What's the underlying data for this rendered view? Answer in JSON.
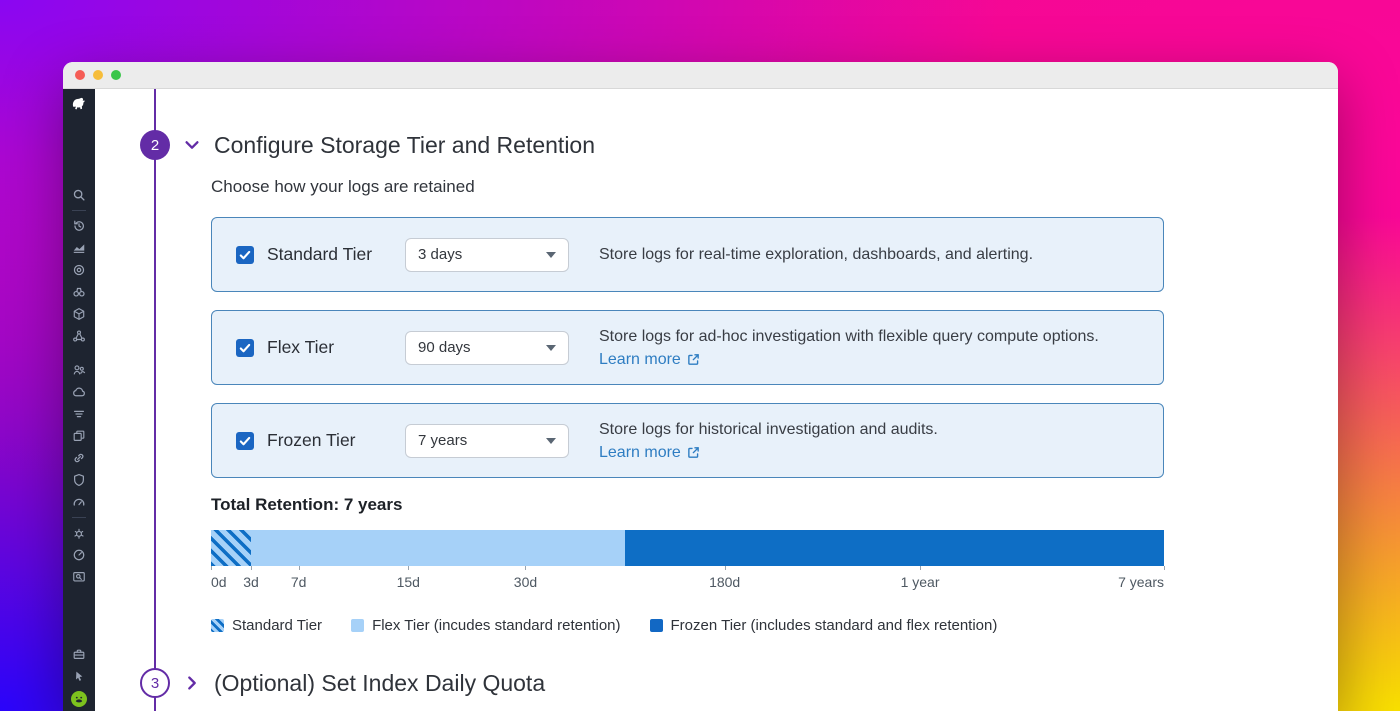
{
  "window": {
    "titlebar_buttons": [
      "close",
      "minimize",
      "maximize"
    ]
  },
  "sidebar": {
    "logo": "datadog-logo",
    "icons": [
      "search-icon",
      "history-icon",
      "dashboards-icon",
      "metrics-target-icon",
      "watchdog-binoculars-icon",
      "package-cube-icon",
      "service-map-icon",
      "org-people-icon",
      "cloud-icon",
      "logs-filter-icon",
      "apps-windows-icon",
      "pipelines-link-icon",
      "security-shield-icon",
      "gauge-icon",
      "settings-bug-icon",
      "performance-speed-icon",
      "monitor-search-icon",
      "toolbox-icon",
      "pointer-icon"
    ],
    "avatar": "user-avatar"
  },
  "steps": {
    "step2": {
      "number": "2",
      "title": "Configure Storage Tier and Retention",
      "subtitle": "Choose how your logs are retained",
      "expanded": true
    },
    "step3": {
      "number": "3",
      "title": "(Optional) Set Index Daily Quota",
      "expanded": false
    }
  },
  "tiers": [
    {
      "name": "Standard Tier",
      "checked": true,
      "retention": "3 days",
      "description": "Store logs for real-time exploration, dashboards, and alerting."
    },
    {
      "name": "Flex Tier",
      "checked": true,
      "retention": "90 days",
      "description": "Store logs for ad-hoc investigation with flexible query compute options.",
      "link_label": "Learn more"
    },
    {
      "name": "Frozen Tier",
      "checked": true,
      "retention": "7 years",
      "description": "Store logs for historical investigation and audits.",
      "link_label": "Learn more"
    }
  ],
  "retention": {
    "title": "Total Retention: 7 years"
  },
  "chart_data": {
    "type": "bar",
    "title": "Total Retention: 7 years",
    "scale": "nonlinear-time",
    "ticks": [
      {
        "label": "0d",
        "pos": 0
      },
      {
        "label": "3d",
        "pos": 0.042
      },
      {
        "label": "7d",
        "pos": 0.092
      },
      {
        "label": "15d",
        "pos": 0.207
      },
      {
        "label": "30d",
        "pos": 0.33
      },
      {
        "label": "180d",
        "pos": 0.539
      },
      {
        "label": "1 year",
        "pos": 0.744
      },
      {
        "label": "7 years",
        "pos": 1
      }
    ],
    "segments": [
      {
        "name": "Standard Tier",
        "from": 0,
        "to": 0.042,
        "style": "hatched"
      },
      {
        "name": "Flex Tier",
        "from": 0.042,
        "to": 0.434,
        "style": "flex"
      },
      {
        "name": "Frozen Tier",
        "from": 0.434,
        "to": 1,
        "style": "frozen"
      }
    ]
  },
  "legend": {
    "items": [
      {
        "label": "Standard Tier",
        "swatch": "hatched-blue"
      },
      {
        "label": "Flex Tier (incudes standard retention)",
        "swatch": "light-blue"
      },
      {
        "label": "Frozen Tier (includes standard and flex retention)",
        "swatch": "dark-blue"
      }
    ]
  },
  "icons": {
    "checkmark": "✓",
    "caret_down": "▾",
    "chevron_down": "⌄",
    "chevron_right": "›",
    "external_link": "↗"
  },
  "colors": {
    "accent_purple": "#632CA6",
    "card_background": "#E8F1FA",
    "card_border": "#4A86BA",
    "checkbox_blue": "#1B66C2",
    "link_blue": "#2E7DC2",
    "bar_flex_blue": "#A6D1F8",
    "bar_frozen_blue": "#0E6EC5",
    "sidebar_background": "#1E2430"
  }
}
